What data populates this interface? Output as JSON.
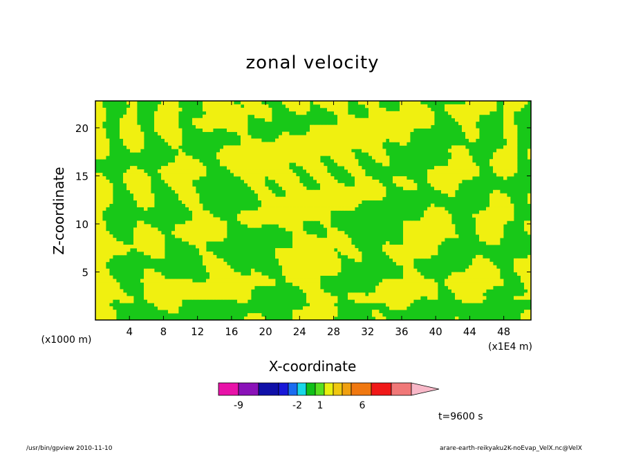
{
  "chart_data": {
    "type": "heatmap",
    "title": "zonal velocity",
    "xlabel": "X-coordinate",
    "ylabel": "Z-coordinate",
    "x_unit": "(x1E4 m)",
    "y_unit": "(x1000 m)",
    "x_ticks": [
      4,
      8,
      12,
      16,
      20,
      24,
      28,
      32,
      36,
      40,
      44,
      48
    ],
    "y_ticks": [
      5,
      10,
      15,
      20
    ],
    "xlim": [
      0,
      51.2
    ],
    "ylim": [
      0,
      22.8
    ],
    "colorbar": {
      "colors": [
        "#e812a8",
        "#8a12b8",
        "#1010a8",
        "#1818d8",
        "#1a6cf0",
        "#18d8e8",
        "#10c018",
        "#58e020",
        "#e8f010",
        "#f0c810",
        "#f0a010",
        "#f07810",
        "#f01818",
        "#f07878",
        "#f8b8c8"
      ],
      "tick_labels": [
        "-9",
        "-2",
        "1",
        "6"
      ]
    },
    "legend_colors": {
      "negative_small": "#18c818",
      "positive_small": "#f0f010"
    }
  },
  "time_label": "t=9600 s",
  "footer_left": "/usr/bin/gpview  2010-11-10",
  "footer_right": "arare-earth-reikyaku2K-noEvap_VelX.nc@VelX"
}
